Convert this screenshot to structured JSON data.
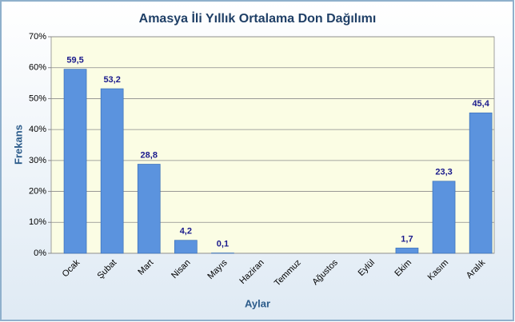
{
  "chart_data": {
    "type": "bar",
    "title": "Amasya İli Yıllık Ortalama Don Dağılımı",
    "x_label": "Aylar",
    "y_label": "Frekans",
    "categories": [
      "Ocak",
      "Şubat",
      "Mart",
      "Nisan",
      "Mayıs",
      "Haziran",
      "Temmuz",
      "Ağustos",
      "Eylül",
      "Ekim",
      "Kasım",
      "Aralık"
    ],
    "values": [
      59.5,
      53.2,
      28.8,
      4.2,
      0.1,
      null,
      null,
      null,
      null,
      1.7,
      23.3,
      45.4
    ],
    "value_labels": [
      "59,5",
      "53,2",
      "28,8",
      "4,2",
      "0,1",
      null,
      null,
      null,
      null,
      "1,7",
      "23,3",
      "45,4"
    ],
    "color": "#5b93de",
    "ylim": [
      0,
      70
    ],
    "yticks": [
      {
        "value": 0,
        "label": "0%"
      },
      {
        "value": 10,
        "label": "10%"
      },
      {
        "value": 20,
        "label": "20%"
      },
      {
        "value": 30,
        "label": "30%"
      },
      {
        "value": 40,
        "label": "40%"
      },
      {
        "value": 50,
        "label": "50%"
      },
      {
        "value": 60,
        "label": "60%"
      },
      {
        "value": 70,
        "label": "70%"
      }
    ],
    "grid": true
  }
}
